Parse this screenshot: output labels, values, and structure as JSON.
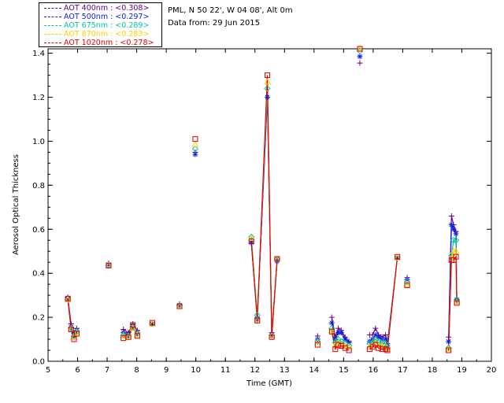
{
  "header": {
    "site_line": "PML, N 50 22', W 04 08', Alt 0m",
    "date_line": "Data from: 29 Jun 2015"
  },
  "chart_data": {
    "type": "line",
    "title": "",
    "xlabel": "Time (GMT)",
    "ylabel": "Aerosol Optical Thickness",
    "xlim": [
      5,
      20
    ],
    "ylim": [
      0,
      1.42
    ],
    "xticks": [
      "5",
      "6",
      "7",
      "8",
      "9",
      "10",
      "11",
      "12",
      "13",
      "14",
      "15",
      "16",
      "17",
      "18",
      "19",
      "20"
    ],
    "yticks": [
      "0.0",
      "0.2",
      "0.4",
      "0.6",
      "0.8",
      "1.0",
      "1.2",
      "1.4"
    ],
    "grid": false,
    "legend_position": "top-left-outside",
    "x": [
      5.67,
      5.78,
      5.88,
      5.97,
      7.05,
      7.55,
      7.72,
      7.87,
      8.02,
      8.53,
      9.45,
      9.98,
      11.88,
      12.08,
      12.42,
      12.57,
      12.75,
      14.12,
      14.6,
      14.72,
      14.82,
      14.92,
      15.05,
      15.18,
      15.55,
      15.88,
      15.98,
      16.08,
      16.18,
      16.3,
      16.42,
      16.48,
      16.82,
      17.15,
      18.55,
      18.65,
      18.72,
      18.8,
      18.83
    ],
    "series": [
      {
        "name": "AOT  400nm : <0.308>",
        "color": "#6a0080",
        "marker": "plus",
        "values": [
          0.29,
          0.17,
          0.13,
          0.15,
          0.445,
          0.145,
          0.13,
          0.17,
          0.14,
          0.17,
          0.26,
          0.95,
          0.535,
          0.2,
          1.2,
          0.13,
          0.46,
          0.115,
          0.2,
          0.11,
          0.15,
          0.14,
          0.11,
          0.09,
          1.355,
          0.12,
          0.12,
          0.15,
          0.12,
          0.11,
          0.12,
          0.08,
          0.47,
          0.38,
          0.11,
          0.66,
          0.62,
          0.59,
          0.27
        ]
      },
      {
        "name": "AOT  500nm : <0.297>",
        "color": "#1020e0",
        "marker": "star",
        "values": [
          0.285,
          0.155,
          0.125,
          0.14,
          0.44,
          0.13,
          0.12,
          0.16,
          0.13,
          0.17,
          0.255,
          0.94,
          0.54,
          0.19,
          1.2,
          0.12,
          0.455,
          0.1,
          0.175,
          0.1,
          0.13,
          0.13,
          0.1,
          0.085,
          1.385,
          0.09,
          0.1,
          0.12,
          0.11,
          0.1,
          0.1,
          0.07,
          0.47,
          0.37,
          0.09,
          0.62,
          0.6,
          0.58,
          0.28
        ]
      },
      {
        "name": "AOT  675nm : <0.289>",
        "color": "#00c8a0",
        "marker": "diamond",
        "values": [
          0.28,
          0.15,
          0.115,
          0.135,
          0.435,
          0.12,
          0.115,
          0.155,
          0.125,
          0.17,
          0.255,
          0.965,
          0.565,
          0.21,
          1.24,
          0.115,
          0.465,
          0.09,
          0.15,
          0.085,
          0.1,
          0.09,
          0.08,
          0.07,
          1.41,
          0.08,
          0.085,
          0.1,
          0.085,
          0.085,
          0.08,
          0.06,
          0.47,
          0.36,
          0.06,
          0.48,
          0.55,
          0.55,
          0.28
        ]
      },
      {
        "name": "AOT  870nm : <0.283>",
        "color": "#ffd000",
        "marker": "triangle",
        "values": [
          0.28,
          0.145,
          0.11,
          0.13,
          0.435,
          0.115,
          0.11,
          0.15,
          0.12,
          0.17,
          0.25,
          0.985,
          0.56,
          0.185,
          1.27,
          0.115,
          0.465,
          0.085,
          0.14,
          0.075,
          0.085,
          0.075,
          0.07,
          0.065,
          1.42,
          0.065,
          0.075,
          0.085,
          0.075,
          0.07,
          0.07,
          0.055,
          0.47,
          0.35,
          0.055,
          0.47,
          0.5,
          0.5,
          0.27
        ]
      },
      {
        "name": "AOT 1020nm : <0.278>",
        "color": "#e00000",
        "marker": "square",
        "values": [
          0.285,
          0.145,
          0.1,
          0.125,
          0.435,
          0.105,
          0.11,
          0.165,
          0.115,
          0.175,
          0.25,
          1.01,
          0.545,
          0.185,
          1.3,
          0.11,
          0.465,
          0.075,
          0.135,
          0.055,
          0.075,
          0.07,
          0.06,
          0.05,
          1.42,
          0.055,
          0.065,
          0.075,
          0.06,
          0.055,
          0.055,
          0.05,
          0.475,
          0.345,
          0.05,
          0.46,
          0.46,
          0.475,
          0.265
        ]
      }
    ],
    "break_after_index": [
      3,
      4,
      8,
      9,
      10,
      11,
      16,
      17,
      23,
      24,
      32,
      33
    ]
  }
}
